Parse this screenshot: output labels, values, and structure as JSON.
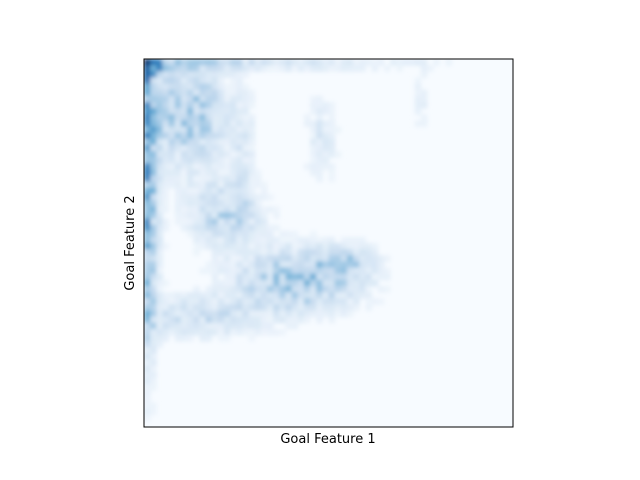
{
  "chart_data": {
    "type": "heatmap",
    "title": "",
    "xlabel": "Goal Feature 1",
    "ylabel": "Goal Feature 2",
    "xticks": [],
    "yticks": [],
    "colormap": "Blues",
    "colors": {
      "low": "#f7fbff",
      "high": "#08306b",
      "frame": "#000000"
    },
    "grid": false,
    "legend": "none",
    "description_of_density": [
      {
        "region": "top-left corner",
        "intensity": 1.0
      },
      {
        "region": "left edge column",
        "intensity": 0.6
      },
      {
        "region": "upper-left cluster",
        "intensity": 0.45
      },
      {
        "region": "center-left cluster",
        "intensity": 0.4
      },
      {
        "region": "center cluster",
        "intensity": 0.5
      },
      {
        "region": "top edge strip",
        "intensity": 0.25
      }
    ]
  }
}
